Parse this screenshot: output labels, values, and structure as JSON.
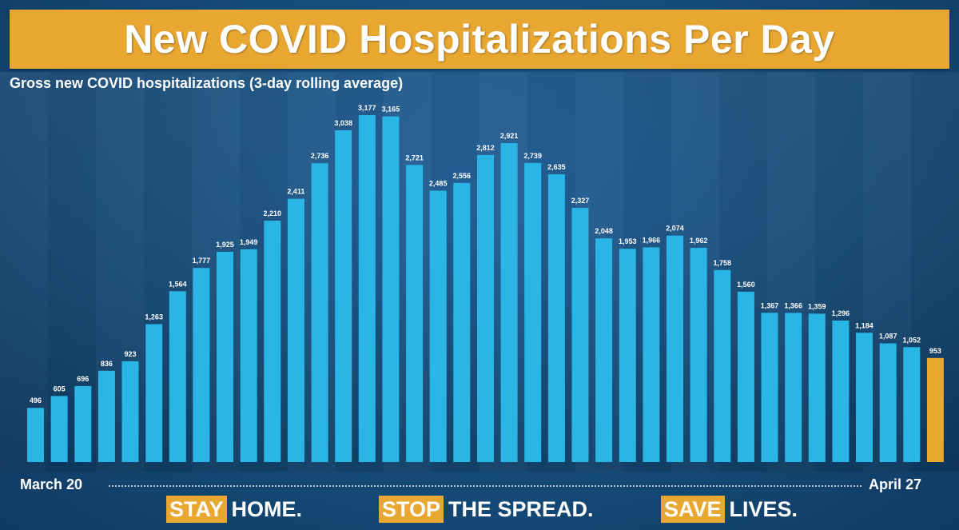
{
  "title": "New COVID Hospitalizations Per Day",
  "chart_data": {
    "type": "bar",
    "title": "New COVID Hospitalizations Per Day",
    "subtitle": "Gross new COVID hospitalizations (3-day rolling average)",
    "xlabel": "",
    "ylabel": "",
    "x_start_label": "March 20",
    "x_end_label": "April 27",
    "ylim": [
      0,
      3177
    ],
    "values": [
      496,
      605,
      696,
      836,
      923,
      1263,
      1564,
      1777,
      1925,
      1949,
      2210,
      2411,
      2736,
      3038,
      3177,
      3165,
      2721,
      2485,
      2556,
      2812,
      2921,
      2739,
      2635,
      2327,
      2048,
      1953,
      1966,
      2074,
      1962,
      1758,
      1560,
      1367,
      1366,
      1359,
      1296,
      1184,
      1087,
      1052,
      953
    ],
    "labels": [
      "496",
      "605",
      "696",
      "836",
      "923",
      "1,263",
      "1,564",
      "1,777",
      "1,925",
      "1,949",
      "2,210",
      "2,411",
      "2,736",
      "3,038",
      "3,177",
      "3,165",
      "2,721",
      "2,485",
      "2,556",
      "2,812",
      "2,921",
      "2,739",
      "2,635",
      "2,327",
      "2,048",
      "1,953",
      "1,966",
      "2,074",
      "1,962",
      "1,758",
      "1,560",
      "1,367",
      "1,366",
      "1,359",
      "1,296",
      "1,184",
      "1,087",
      "1,052",
      "953"
    ],
    "highlight_last": true,
    "bar_color": "#29b6e6",
    "highlight_color": "#e8a731",
    "grid": false
  },
  "slogans": [
    {
      "highlight": "STAY",
      "rest": "HOME."
    },
    {
      "highlight": "STOP",
      "rest": "THE SPREAD."
    },
    {
      "highlight": "SAVE",
      "rest": "LIVES."
    }
  ]
}
